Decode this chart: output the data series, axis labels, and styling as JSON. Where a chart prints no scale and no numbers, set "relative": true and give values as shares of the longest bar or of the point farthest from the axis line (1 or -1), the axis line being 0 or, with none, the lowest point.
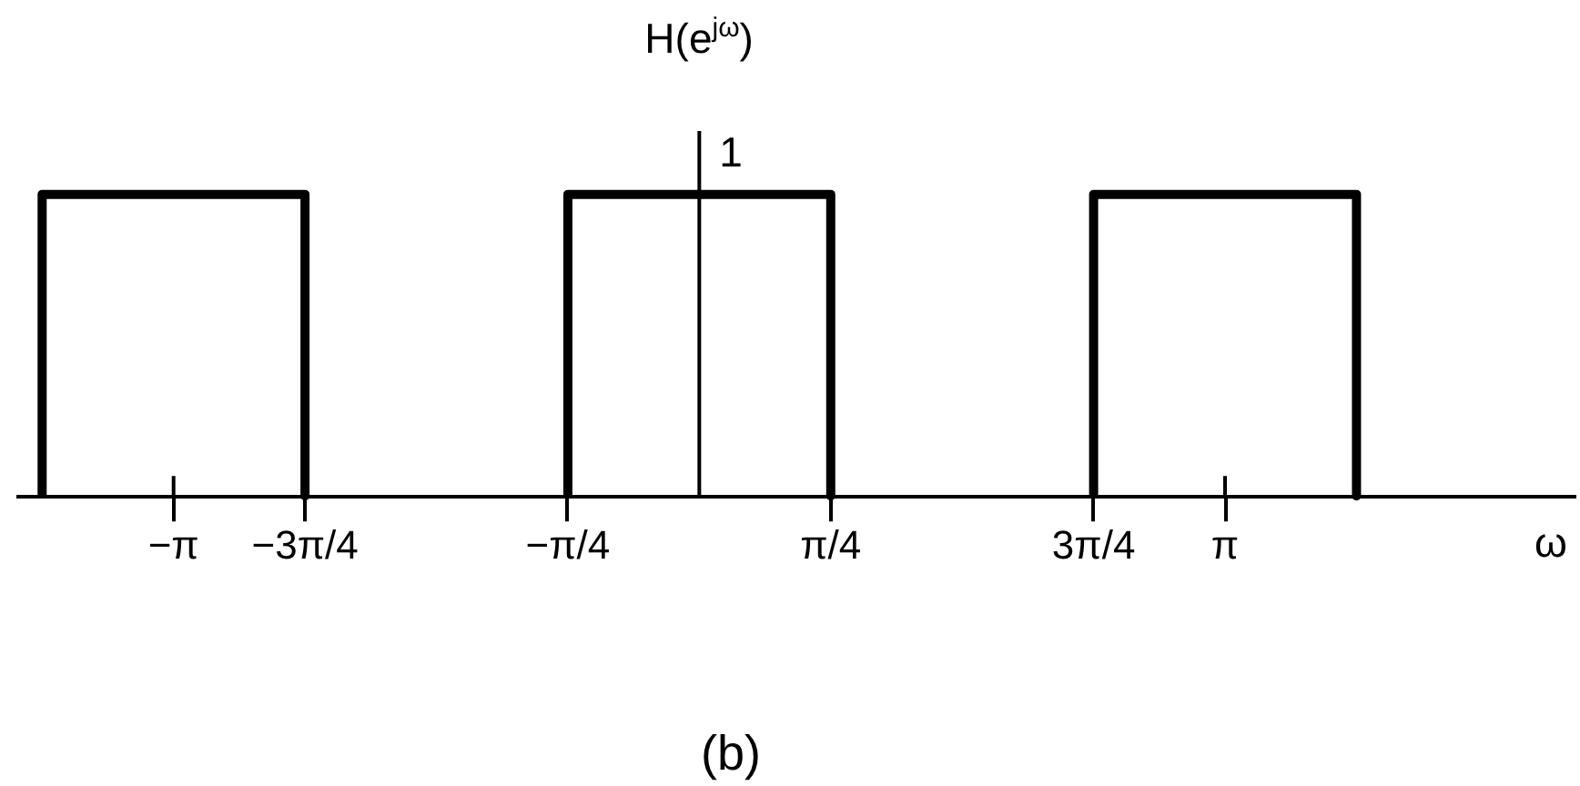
{
  "chart_data": {
    "type": "line",
    "relative": true,
    "x": [
      -3.927,
      -3.927,
      -2.3562,
      -2.3562,
      -1.5708,
      -0.7854,
      -0.7854,
      0.7854,
      0.7854,
      1.5708,
      2.3562,
      2.3562,
      3.927,
      3.927
    ],
    "series": [
      {
        "color": "#000000",
        "values": [
          0,
          1,
          1,
          0,
          null,
          0,
          1,
          1,
          0,
          null,
          0,
          1,
          1,
          0
        ]
      }
    ],
    "xlim": [
      -4.07,
      5.23
    ],
    "xticks": [
      {
        "value": -3.1416,
        "label": "−π"
      },
      {
        "value": -2.3562,
        "label": "−3π/4"
      },
      {
        "value": -0.7854,
        "label": "−π/4"
      },
      {
        "value": 0.7854,
        "label": "π/4"
      },
      {
        "value": 2.3562,
        "label": "3π/4"
      },
      {
        "value": 3.1416,
        "label": "π"
      }
    ],
    "xlabel": "ω",
    "ylabel": "H(e$^{jω}$)",
    "ref_lines": [
      {
        "axis": "x",
        "value": 0,
        "color": "#000000"
      }
    ],
    "annotations": [
      {
        "text": "1",
        "x": 0,
        "y": 1
      },
      "(b)"
    ]
  }
}
